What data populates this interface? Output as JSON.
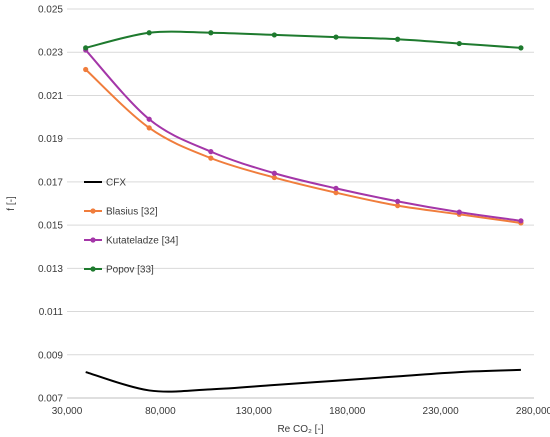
{
  "chart_data": {
    "type": "line",
    "title": "",
    "xlabel": "Re CO₂ [-]",
    "ylabel": "f [-]",
    "xlim": [
      30000,
      280000
    ],
    "ylim": [
      0.007,
      0.025
    ],
    "x_ticks": [
      30000,
      80000,
      130000,
      180000,
      230000,
      280000
    ],
    "x_tick_labels": [
      "30,000",
      "80,000",
      "130,000",
      "180,000",
      "230,000",
      "280,000"
    ],
    "y_ticks": [
      0.007,
      0.009,
      0.011,
      0.013,
      0.015,
      0.017,
      0.019,
      0.021,
      0.023,
      0.025
    ],
    "y_tick_labels": [
      "0.007",
      "0.009",
      "0.011",
      "0.013",
      "0.015",
      "0.017",
      "0.019",
      "0.021",
      "0.023",
      "0.025"
    ],
    "grid": {
      "horizontal": true,
      "vertical": false
    },
    "legend_position": "left-center inside plot",
    "series": [
      {
        "name": "CFX",
        "color": "#000000",
        "markers": false,
        "x": [
          40000,
          74000,
          107000,
          141000,
          174000,
          207000,
          240000,
          273000
        ],
        "y": [
          0.0082,
          0.00735,
          0.0074,
          0.0076,
          0.0078,
          0.008,
          0.0082,
          0.0083
        ]
      },
      {
        "name": "Blasius [32]",
        "color": "#f07d3c",
        "markers": true,
        "x": [
          40000,
          74000,
          107000,
          141000,
          174000,
          207000,
          240000,
          273000
        ],
        "y": [
          0.0222,
          0.0195,
          0.0181,
          0.0172,
          0.0165,
          0.0159,
          0.0155,
          0.0151
        ]
      },
      {
        "name": "Kutateladze [34]",
        "color": "#a436a8",
        "markers": true,
        "x": [
          40000,
          74000,
          107000,
          141000,
          174000,
          207000,
          240000,
          273000
        ],
        "y": [
          0.0231,
          0.0199,
          0.0184,
          0.0174,
          0.0167,
          0.0161,
          0.0156,
          0.0152
        ]
      },
      {
        "name": "Popov [33]",
        "color": "#1e7a2e",
        "markers": true,
        "x": [
          40000,
          74000,
          107000,
          141000,
          174000,
          207000,
          240000,
          273000
        ],
        "y": [
          0.0232,
          0.0239,
          0.0239,
          0.0238,
          0.0237,
          0.0236,
          0.0234,
          0.0232
        ]
      }
    ]
  }
}
